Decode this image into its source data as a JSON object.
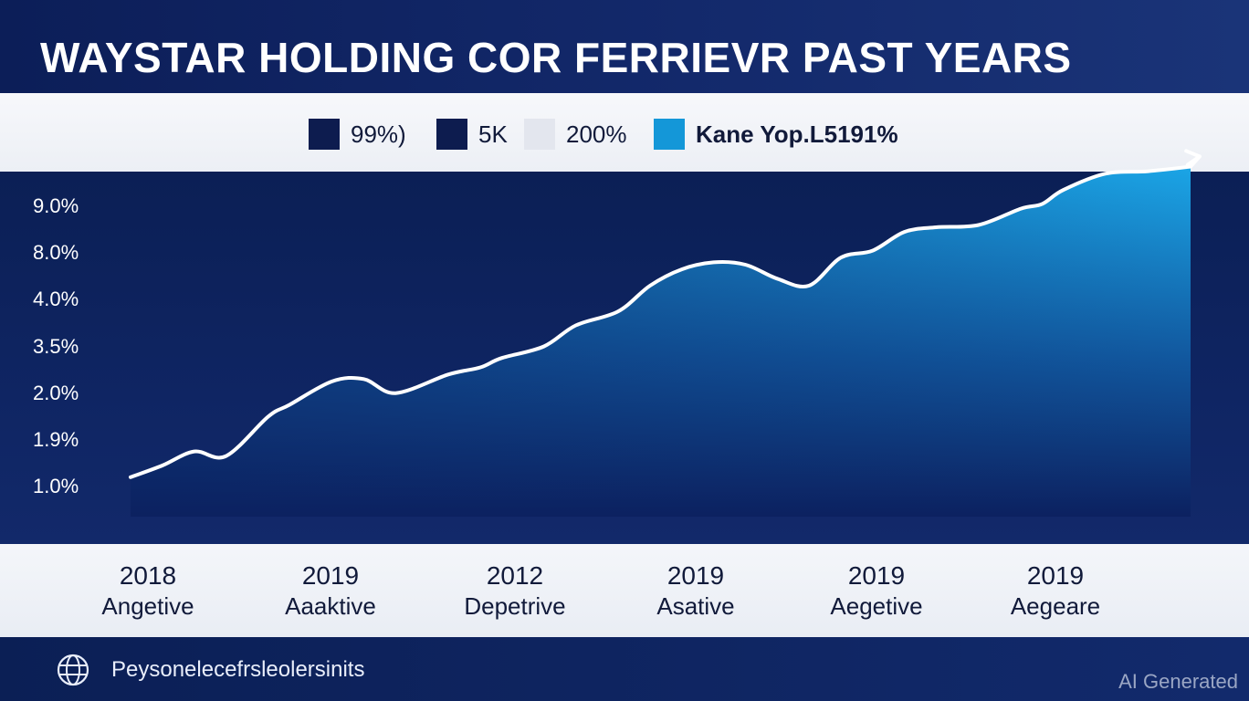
{
  "title": "WAYSTAR HOLDING COR FERRIEVR PAST YEARS",
  "legend": [
    {
      "label": "99%)",
      "color": "#0d1c4f",
      "bold": false
    },
    {
      "label": "5K",
      "color": "#0d1c4f",
      "bold": false
    },
    {
      "label": "200%",
      "color": "#e3e6ee",
      "bold": false
    },
    {
      "label": "Kane Yop.L5191%",
      "color": "#1497d8",
      "bold": true
    }
  ],
  "y_ticks": [
    "9.0%",
    "8.0%",
    "4.0%",
    "3.5%",
    "2.0%",
    "1.9%",
    "1.0%"
  ],
  "x_ticks": [
    {
      "year": "2018",
      "label": "Angetive"
    },
    {
      "year": "2019",
      "label": "Aaaktive"
    },
    {
      "year": "2012",
      "label": "Depetrive"
    },
    {
      "year": "2019",
      "label": "Asative"
    },
    {
      "year": "2019",
      "label": "Aegetive"
    },
    {
      "year": "2019",
      "label": "Aegeare"
    }
  ],
  "footer": {
    "text": "Peysonelecefrsleolersinits",
    "icon": "globe-icon"
  },
  "watermark": "AI Generated",
  "colors": {
    "area_top": "#1ba5e6",
    "area_bottom": "#0c2160",
    "line": "#ffffff"
  },
  "chart_data": {
    "type": "area",
    "title": "WAYSTAR HOLDING COR FERRIEVR PAST YEARS",
    "y_tick_labels": [
      "9.0%",
      "8.0%",
      "4.0%",
      "3.5%",
      "2.0%",
      "1.9%",
      "1.0%"
    ],
    "x_tick_labels": [
      "2018",
      "2019",
      "2012",
      "2019",
      "2019",
      "2019"
    ],
    "y_scale": "ordinal tick positions (index 0 = bottom '1.0%', 6 = top '9.0%')",
    "x_range": [
      0,
      100
    ],
    "y_range": [
      0,
      7
    ],
    "grid": false,
    "legend_position": "top",
    "series": [
      {
        "points": [
          [
            0,
            0.2
          ],
          [
            3,
            0.45
          ],
          [
            6,
            0.75
          ],
          [
            9,
            0.65
          ],
          [
            13,
            1.5
          ],
          [
            15,
            1.75
          ],
          [
            19,
            2.25
          ],
          [
            22,
            2.3
          ],
          [
            25,
            2.0
          ],
          [
            30,
            2.4
          ],
          [
            33,
            2.55
          ],
          [
            35,
            2.75
          ],
          [
            39,
            3.0
          ],
          [
            42,
            3.45
          ],
          [
            46,
            3.75
          ],
          [
            49,
            4.3
          ],
          [
            52,
            4.65
          ],
          [
            55,
            4.8
          ],
          [
            58,
            4.75
          ],
          [
            61,
            4.45
          ],
          [
            64,
            4.3
          ],
          [
            67,
            4.9
          ],
          [
            70,
            5.05
          ],
          [
            73,
            5.45
          ],
          [
            76,
            5.55
          ],
          [
            80,
            5.6
          ],
          [
            84,
            5.95
          ],
          [
            86,
            6.05
          ],
          [
            88,
            6.35
          ],
          [
            92,
            6.7
          ],
          [
            96,
            6.75
          ],
          [
            100,
            6.85
          ]
        ]
      }
    ],
    "end_marker": "arrow"
  }
}
